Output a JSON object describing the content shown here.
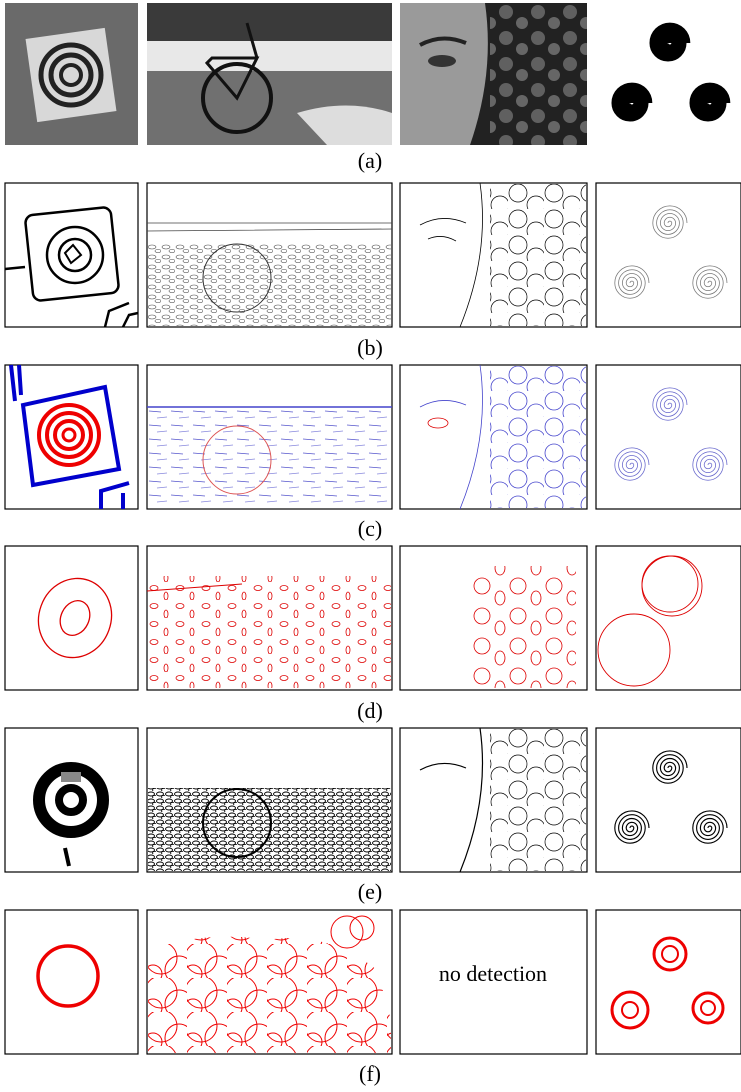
{
  "captions": [
    "(a)",
    "(b)",
    "(c)",
    "(d)",
    "(e)",
    "(f)"
  ],
  "no_detection_label": "no detection"
}
